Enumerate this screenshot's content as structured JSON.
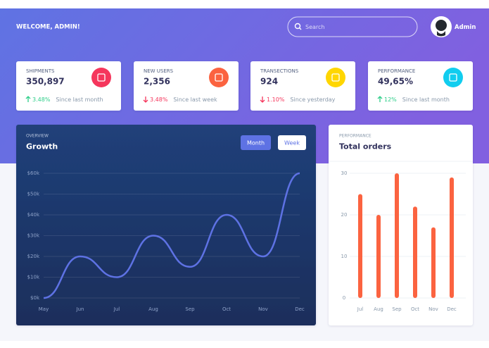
{
  "header": {
    "greeting": "WELCOME, ADMIN!",
    "search_placeholder": "Search",
    "user": "Admin"
  },
  "cards": [
    {
      "label": "SHIPMENTS",
      "value": "350,897",
      "change": "3.48%",
      "trend": "up",
      "note": "Since last month",
      "color": "#f5365c"
    },
    {
      "label": "NEW USERS",
      "value": "2,356",
      "change": "3.48%",
      "trend": "down",
      "note": "Since last week",
      "color": "#fb6340"
    },
    {
      "label": "TRANSECTIONS",
      "value": "924",
      "change": "1.10%",
      "trend": "down",
      "note": "Since yesterday",
      "color": "#ffd600"
    },
    {
      "label": "PERFORMANCE",
      "value": "49,65%",
      "change": "12%",
      "trend": "up",
      "note": "Since last month",
      "color": "#11cdef"
    }
  ],
  "chart_data": [
    {
      "type": "line",
      "subtitle": "OVERVIEW",
      "title": "Growth",
      "buttons": [
        "Month",
        "Week"
      ],
      "categories": [
        "May",
        "Jun",
        "Jul",
        "Aug",
        "Sep",
        "Oct",
        "Nov",
        "Dec"
      ],
      "values": [
        0,
        20000,
        10000,
        30000,
        15000,
        40000,
        20000,
        60000
      ],
      "color": "#5e72e4",
      "grid": true,
      "ylim": [
        0,
        60000
      ],
      "yticks": [
        {
          "value": 0,
          "label": "$0k"
        },
        {
          "value": 10000,
          "label": "$10k"
        },
        {
          "value": 20000,
          "label": "$20k"
        },
        {
          "value": 30000,
          "label": "$30k"
        },
        {
          "value": 40000,
          "label": "$40k"
        },
        {
          "value": 50000,
          "label": "$50k"
        },
        {
          "value": 60000,
          "label": "$60k"
        }
      ]
    },
    {
      "type": "bar",
      "subtitle": "PERFORMANCE",
      "title": "Total orders",
      "categories": [
        "Jul",
        "Aug",
        "Sep",
        "Oct",
        "Nov",
        "Dec"
      ],
      "values": [
        25,
        20,
        30,
        22,
        17,
        29
      ],
      "color": "#fb6340",
      "grid": true,
      "ylim": [
        0,
        30
      ],
      "yticks": [
        0,
        10,
        20,
        30
      ]
    }
  ]
}
